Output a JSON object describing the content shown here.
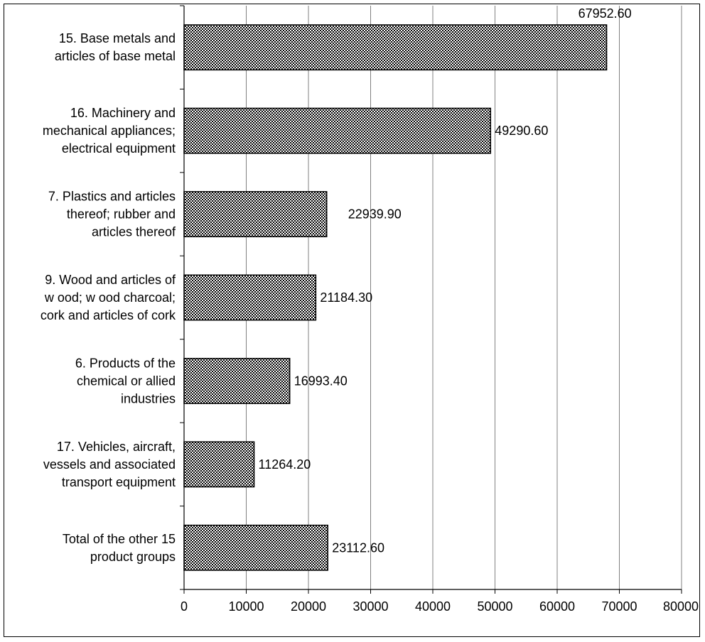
{
  "chart_data": {
    "type": "bar",
    "orientation": "horizontal",
    "title": "",
    "xlabel": "",
    "ylabel": "",
    "categories": [
      [
        "15. Base metals and",
        "articles of base metal"
      ],
      [
        "16. Machinery and",
        "mechanical appliances;",
        "electrical equipment"
      ],
      [
        "7. Plastics and articles",
        "thereof; rubber and",
        "articles thereof"
      ],
      [
        "9. Wood and articles of",
        "w ood; w ood charcoal;",
        "cork and articles of cork"
      ],
      [
        "6. Products of the",
        "chemical or allied",
        "industries"
      ],
      [
        "17. Vehicles, aircraft,",
        "vessels and associated",
        "transport equipment"
      ],
      [
        "Total of the other 15",
        "product groups"
      ]
    ],
    "values": [
      67952.6,
      49290.6,
      22939.9,
      21184.3,
      16993.4,
      11264.2,
      23112.6
    ],
    "value_labels": [
      "67952.60",
      "49290.60",
      "22939.90",
      "21184.30",
      "16993.40",
      "11264.20",
      "23112.60"
    ],
    "xlim": [
      0,
      80000
    ],
    "xticks": [
      0,
      10000,
      20000,
      30000,
      40000,
      50000,
      60000,
      70000,
      80000
    ],
    "xtick_labels": [
      "0",
      "10000",
      "20000",
      "30000",
      "40000",
      "50000",
      "60000",
      "70000",
      "80000"
    ],
    "grid": "vertical",
    "legend": "none",
    "bar_fill": "checkered-pattern",
    "colors": {
      "bar_dark": "#000000",
      "bar_light": "#ffffff",
      "grid": "#808080"
    }
  }
}
